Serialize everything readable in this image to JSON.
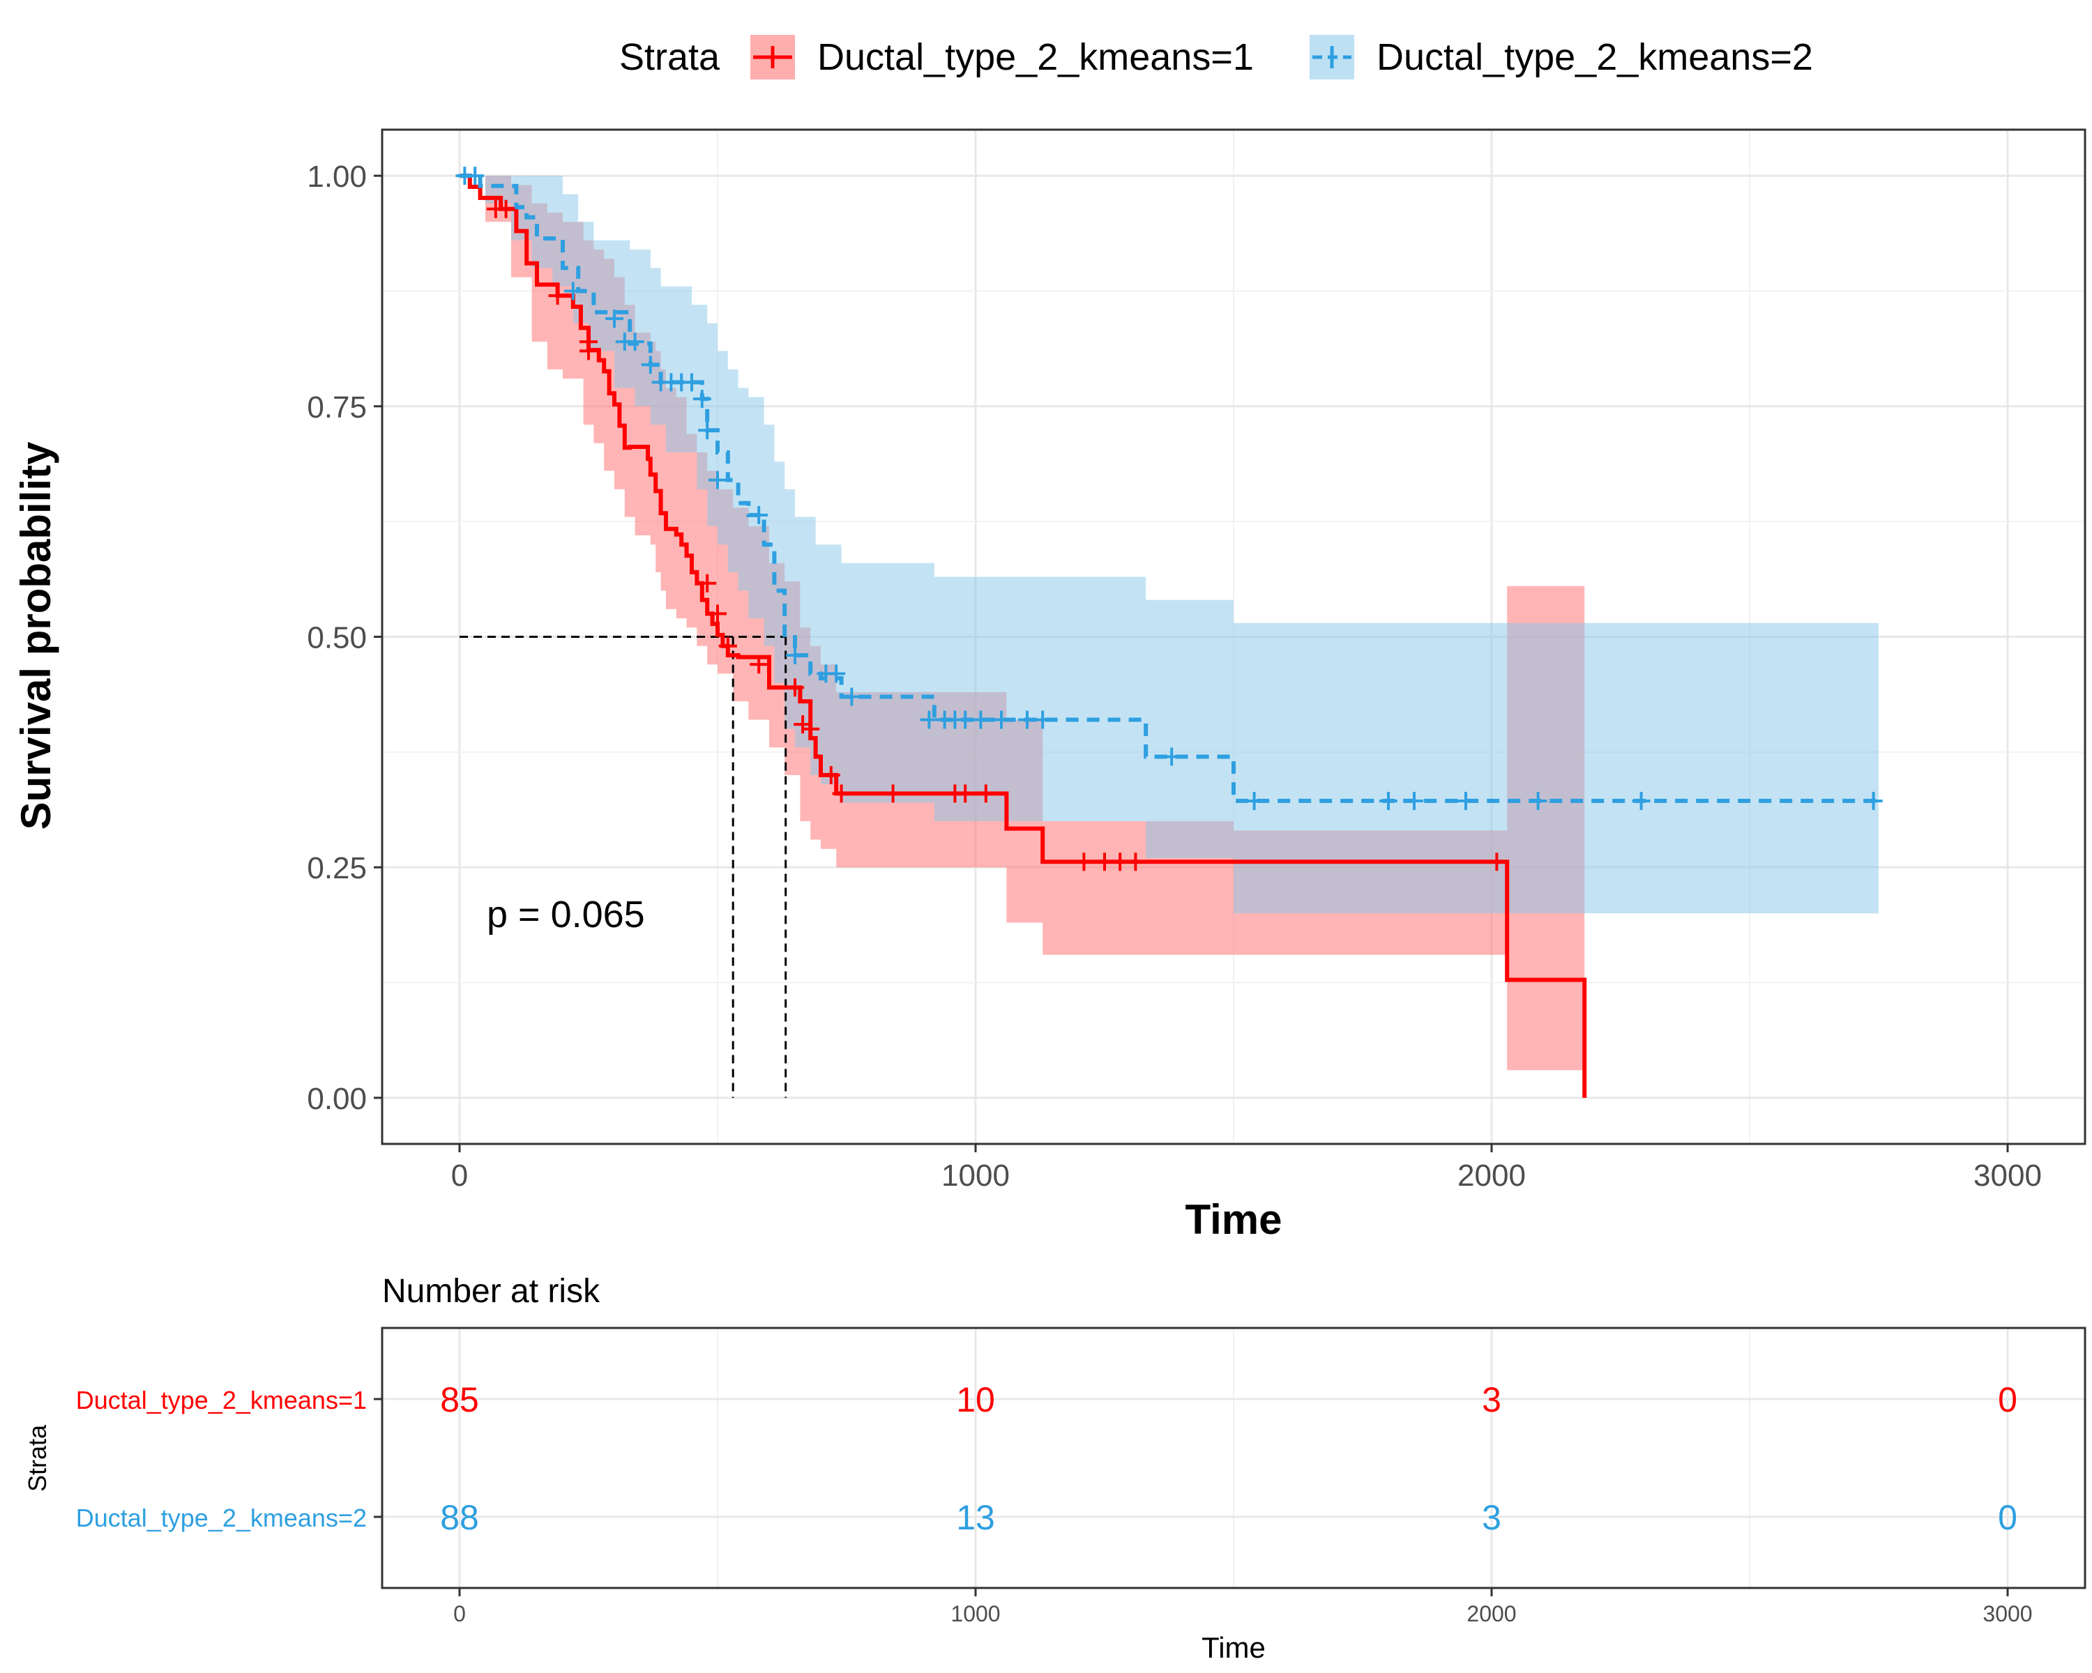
{
  "chart_data": [
    {
      "type": "line",
      "subtype": "kaplan-meier",
      "xlabel": "Time",
      "ylabel": "Survival probability",
      "xlim": [
        -150,
        3150
      ],
      "ylim": [
        -0.05,
        1.05
      ],
      "xticks": [
        0,
        1000,
        2000,
        3000
      ],
      "yticks": [
        0,
        0.25,
        0.5,
        0.75,
        1.0
      ],
      "xtick_labels": [
        "0",
        "1000",
        "2000",
        "3000"
      ],
      "ytick_labels": [
        "0.00",
        "0.25",
        "0.50",
        "0.75",
        "1.00"
      ],
      "grid": true,
      "legend": {
        "title": "Strata",
        "position": "top",
        "entries": [
          "Ductal_type_2_kmeans=1",
          "Ductal_type_2_kmeans=2"
        ]
      },
      "annotation": "p = 0.065",
      "median_lines": [
        {
          "x": 530,
          "y": 0.5
        },
        {
          "x": 632,
          "y": 0.5
        }
      ],
      "series": [
        {
          "name": "Ductal_type_2_kmeans=1",
          "color": "#ff0000",
          "fill": "#ff6b6b",
          "linestyle": "solid",
          "steps": [
            [
              0,
              1.0
            ],
            [
              20,
              0.988
            ],
            [
              40,
              0.976
            ],
            [
              80,
              0.964
            ],
            [
              110,
              0.94
            ],
            [
              130,
              0.905
            ],
            [
              150,
              0.882
            ],
            [
              190,
              0.87
            ],
            [
              220,
              0.858
            ],
            [
              235,
              0.835
            ],
            [
              250,
              0.811
            ],
            [
              270,
              0.8
            ],
            [
              280,
              0.788
            ],
            [
              290,
              0.764
            ],
            [
              300,
              0.752
            ],
            [
              310,
              0.729
            ],
            [
              320,
              0.705
            ],
            [
              330,
              0.706
            ],
            [
              365,
              0.693
            ],
            [
              370,
              0.676
            ],
            [
              380,
              0.658
            ],
            [
              390,
              0.634
            ],
            [
              400,
              0.617
            ],
            [
              420,
              0.611
            ],
            [
              430,
              0.6
            ],
            [
              440,
              0.588
            ],
            [
              450,
              0.57
            ],
            [
              460,
              0.558
            ],
            [
              470,
              0.54
            ],
            [
              480,
              0.525
            ],
            [
              490,
              0.514
            ],
            [
              500,
              0.502
            ],
            [
              510,
              0.49
            ],
            [
              520,
              0.48
            ],
            [
              540,
              0.478
            ],
            [
              600,
              0.445
            ],
            [
              660,
              0.43
            ],
            [
              680,
              0.39
            ],
            [
              690,
              0.37
            ],
            [
              700,
              0.35
            ],
            [
              730,
              0.33
            ],
            [
              1060,
              0.292
            ],
            [
              1130,
              0.256
            ],
            [
              2030,
              0.128
            ],
            [
              2180,
              0.0
            ]
          ],
          "lower": [
            [
              0,
              1.0
            ],
            [
              50,
              0.95
            ],
            [
              100,
              0.89
            ],
            [
              140,
              0.82
            ],
            [
              170,
              0.79
            ],
            [
              200,
              0.78
            ],
            [
              240,
              0.73
            ],
            [
              260,
              0.71
            ],
            [
              280,
              0.68
            ],
            [
              300,
              0.66
            ],
            [
              320,
              0.63
            ],
            [
              340,
              0.61
            ],
            [
              370,
              0.6
            ],
            [
              380,
              0.57
            ],
            [
              390,
              0.55
            ],
            [
              400,
              0.53
            ],
            [
              420,
              0.52
            ],
            [
              440,
              0.51
            ],
            [
              460,
              0.49
            ],
            [
              480,
              0.47
            ],
            [
              500,
              0.46
            ],
            [
              530,
              0.43
            ],
            [
              560,
              0.41
            ],
            [
              600,
              0.38
            ],
            [
              630,
              0.35
            ],
            [
              660,
              0.3
            ],
            [
              680,
              0.28
            ],
            [
              700,
              0.27
            ],
            [
              730,
              0.25
            ],
            [
              1060,
              0.19
            ],
            [
              1130,
              0.155
            ],
            [
              2030,
              0.03
            ],
            [
              2180,
              0.03
            ]
          ],
          "upper": [
            [
              0,
              1.0
            ],
            [
              50,
              1.0
            ],
            [
              100,
              0.99
            ],
            [
              140,
              0.97
            ],
            [
              170,
              0.96
            ],
            [
              200,
              0.95
            ],
            [
              240,
              0.93
            ],
            [
              260,
              0.92
            ],
            [
              280,
              0.91
            ],
            [
              300,
              0.89
            ],
            [
              320,
              0.86
            ],
            [
              340,
              0.83
            ],
            [
              370,
              0.82
            ],
            [
              380,
              0.81
            ],
            [
              390,
              0.79
            ],
            [
              400,
              0.77
            ],
            [
              420,
              0.76
            ],
            [
              440,
              0.72
            ],
            [
              460,
              0.7
            ],
            [
              480,
              0.68
            ],
            [
              500,
              0.66
            ],
            [
              530,
              0.64
            ],
            [
              560,
              0.62
            ],
            [
              600,
              0.58
            ],
            [
              630,
              0.56
            ],
            [
              660,
              0.51
            ],
            [
              680,
              0.49
            ],
            [
              700,
              0.47
            ],
            [
              730,
              0.44
            ],
            [
              1060,
              0.41
            ],
            [
              1130,
              0.3
            ],
            [
              1330,
              0.3
            ],
            [
              1500,
              0.29
            ],
            [
              2030,
              0.555
            ],
            [
              2180,
              0.555
            ]
          ],
          "censor_times": [
            [
              70,
              0.964
            ],
            [
              90,
              0.964
            ],
            [
              190,
              0.87
            ],
            [
              250,
              0.82
            ],
            [
              250,
              0.81
            ],
            [
              480,
              0.558
            ],
            [
              500,
              0.525
            ],
            [
              520,
              0.49
            ],
            [
              580,
              0.47
            ],
            [
              650,
              0.445
            ],
            [
              665,
              0.405
            ],
            [
              680,
              0.4
            ],
            [
              720,
              0.35
            ],
            [
              740,
              0.33
            ],
            [
              840,
              0.33
            ],
            [
              960,
              0.33
            ],
            [
              980,
              0.33
            ],
            [
              1020,
              0.33
            ],
            [
              1210,
              0.256
            ],
            [
              1250,
              0.256
            ],
            [
              1280,
              0.256
            ],
            [
              1310,
              0.256
            ],
            [
              2010,
              0.256
            ]
          ],
          "risk_counts": [
            85,
            10,
            3,
            0
          ]
        },
        {
          "name": "Ductal_type_2_kmeans=2",
          "color": "#2e9fe0",
          "fill": "#87c7ea",
          "linestyle": "dashed",
          "steps": [
            [
              0,
              1.0
            ],
            [
              40,
              0.989
            ],
            [
              110,
              0.966
            ],
            [
              130,
              0.955
            ],
            [
              150,
              0.932
            ],
            [
              200,
              0.9
            ],
            [
              230,
              0.875
            ],
            [
              260,
              0.852
            ],
            [
              330,
              0.818
            ],
            [
              370,
              0.795
            ],
            [
              390,
              0.776
            ],
            [
              470,
              0.758
            ],
            [
              480,
              0.724
            ],
            [
              500,
              0.7
            ],
            [
              520,
              0.67
            ],
            [
              540,
              0.645
            ],
            [
              560,
              0.632
            ],
            [
              590,
              0.6
            ],
            [
              610,
              0.55
            ],
            [
              630,
              0.502
            ],
            [
              650,
              0.48
            ],
            [
              680,
              0.46
            ],
            [
              700,
              0.455
            ],
            [
              740,
              0.435
            ],
            [
              920,
              0.41
            ],
            [
              1330,
              0.37
            ],
            [
              1500,
              0.322
            ],
            [
              2750,
              0.322
            ]
          ],
          "lower": [
            [
              0,
              1.0
            ],
            [
              50,
              0.97
            ],
            [
              100,
              0.93
            ],
            [
              140,
              0.9
            ],
            [
              180,
              0.88
            ],
            [
              220,
              0.84
            ],
            [
              250,
              0.81
            ],
            [
              300,
              0.77
            ],
            [
              340,
              0.75
            ],
            [
              370,
              0.73
            ],
            [
              400,
              0.7
            ],
            [
              460,
              0.66
            ],
            [
              480,
              0.62
            ],
            [
              500,
              0.6
            ],
            [
              520,
              0.57
            ],
            [
              540,
              0.55
            ],
            [
              560,
              0.52
            ],
            [
              590,
              0.49
            ],
            [
              610,
              0.45
            ],
            [
              630,
              0.4
            ],
            [
              650,
              0.38
            ],
            [
              680,
              0.35
            ],
            [
              700,
              0.34
            ],
            [
              740,
              0.32
            ],
            [
              920,
              0.3
            ],
            [
              1330,
              0.26
            ],
            [
              1500,
              0.2
            ],
            [
              2750,
              0.2
            ]
          ],
          "upper": [
            [
              0,
              1.0
            ],
            [
              150,
              1.0
            ],
            [
              200,
              0.98
            ],
            [
              230,
              0.95
            ],
            [
              260,
              0.93
            ],
            [
              330,
              0.92
            ],
            [
              370,
              0.9
            ],
            [
              390,
              0.88
            ],
            [
              450,
              0.86
            ],
            [
              480,
              0.84
            ],
            [
              500,
              0.81
            ],
            [
              520,
              0.79
            ],
            [
              540,
              0.77
            ],
            [
              560,
              0.76
            ],
            [
              590,
              0.73
            ],
            [
              610,
              0.69
            ],
            [
              630,
              0.66
            ],
            [
              650,
              0.63
            ],
            [
              690,
              0.6
            ],
            [
              740,
              0.58
            ],
            [
              920,
              0.565
            ],
            [
              1330,
              0.54
            ],
            [
              1500,
              0.515
            ],
            [
              2750,
              0.515
            ]
          ],
          "censor_times": [
            [
              10,
              1.0
            ],
            [
              30,
              1.0
            ],
            [
              220,
              0.875
            ],
            [
              300,
              0.845
            ],
            [
              320,
              0.82
            ],
            [
              340,
              0.82
            ],
            [
              370,
              0.795
            ],
            [
              390,
              0.776
            ],
            [
              410,
              0.776
            ],
            [
              430,
              0.776
            ],
            [
              450,
              0.776
            ],
            [
              470,
              0.758
            ],
            [
              480,
              0.724
            ],
            [
              500,
              0.67
            ],
            [
              580,
              0.632
            ],
            [
              650,
              0.48
            ],
            [
              710,
              0.46
            ],
            [
              730,
              0.46
            ],
            [
              760,
              0.435
            ],
            [
              910,
              0.41
            ],
            [
              940,
              0.41
            ],
            [
              960,
              0.41
            ],
            [
              980,
              0.41
            ],
            [
              1010,
              0.41
            ],
            [
              1050,
              0.41
            ],
            [
              1100,
              0.41
            ],
            [
              1130,
              0.41
            ],
            [
              1380,
              0.37
            ],
            [
              1540,
              0.322
            ],
            [
              1800,
              0.322
            ],
            [
              1850,
              0.322
            ],
            [
              1950,
              0.322
            ],
            [
              2090,
              0.322
            ],
            [
              2290,
              0.322
            ],
            [
              2740,
              0.322
            ]
          ],
          "risk_counts": [
            88,
            13,
            3,
            0
          ]
        }
      ]
    },
    {
      "type": "table",
      "title": "Number at risk",
      "xlabel": "Time",
      "ylabel": "Strata",
      "xticks": [
        0,
        1000,
        2000,
        3000
      ],
      "xtick_labels": [
        "0",
        "1000",
        "2000",
        "3000"
      ],
      "rows": [
        {
          "label": "Ductal_type_2_kmeans=1",
          "color": "#ff0000",
          "values": [
            "85",
            "10",
            "3",
            "0"
          ]
        },
        {
          "label": "Ductal_type_2_kmeans=2",
          "color": "#2e9fe0",
          "values": [
            "88",
            "13",
            "3",
            "0"
          ]
        }
      ]
    }
  ]
}
